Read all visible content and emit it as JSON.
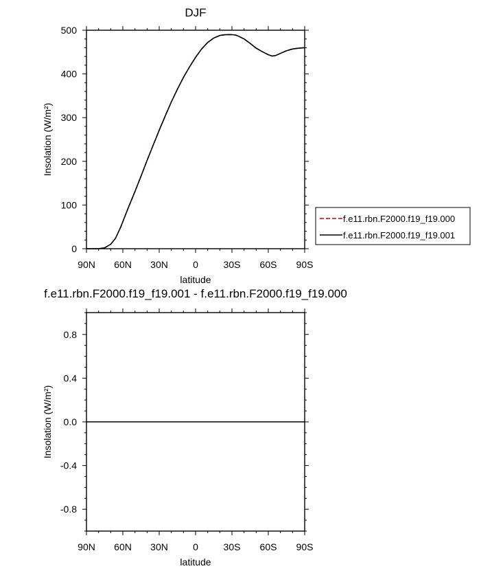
{
  "chart_data": [
    {
      "type": "line",
      "title": "DJF",
      "xlabel": "latitude",
      "ylabel": "Insolation (W/m²)",
      "ylim": [
        0,
        500
      ],
      "xlim": [
        90,
        -90
      ],
      "x_ticks": [
        90,
        60,
        30,
        0,
        -30,
        -60,
        -90
      ],
      "x_tick_labels": [
        "90N",
        "60N",
        "30N",
        "0",
        "30S",
        "60S",
        "90S"
      ],
      "y_ticks": [
        0,
        100,
        200,
        300,
        400,
        500
      ],
      "y_tick_labels": [
        "0",
        "100",
        "200",
        "300",
        "400",
        "500"
      ],
      "grid": false,
      "legend_position": "outside right",
      "x": [
        90,
        85,
        80,
        75,
        70,
        66,
        62,
        58,
        55,
        50,
        45,
        40,
        35,
        30,
        25,
        20,
        15,
        10,
        5,
        0,
        -5,
        -10,
        -15,
        -20,
        -25,
        -30,
        -33,
        -35,
        -40,
        -45,
        -50,
        -55,
        -60,
        -63,
        -66,
        -70,
        -75,
        -80,
        -85,
        -90
      ],
      "series": [
        {
          "name": "f.e11.rbn.F2000.f19_f19.000",
          "color": "#cc0000",
          "dash": "dashed",
          "values": [
            0,
            0,
            0,
            2,
            10,
            24,
            48,
            76,
            97,
            131,
            166,
            202,
            237,
            271,
            304,
            336,
            365,
            392,
            416,
            438,
            457,
            472,
            482,
            488,
            490,
            490,
            489,
            487,
            480,
            470,
            459,
            451,
            444,
            441,
            442,
            447,
            453,
            457,
            459,
            460
          ]
        },
        {
          "name": "f.e11.rbn.F2000.f19_f19.001",
          "color": "#000000",
          "dash": "solid",
          "values": [
            0,
            0,
            0,
            2,
            10,
            24,
            48,
            76,
            97,
            131,
            166,
            202,
            237,
            271,
            304,
            336,
            365,
            392,
            416,
            438,
            457,
            472,
            482,
            488,
            490,
            490,
            489,
            487,
            480,
            470,
            459,
            451,
            444,
            441,
            442,
            447,
            453,
            457,
            459,
            460
          ]
        }
      ]
    },
    {
      "type": "line",
      "title": "f.e11.rbn.F2000.f19_f19.001 - f.e11.rbn.F2000.f19_f19.000",
      "xlabel": "latitude",
      "ylabel": "Insolation (W/m²)",
      "ylim": [
        -1,
        1
      ],
      "xlim": [
        90,
        -90
      ],
      "x_ticks": [
        90,
        60,
        30,
        0,
        -30,
        -60,
        -90
      ],
      "x_tick_labels": [
        "90N",
        "60N",
        "30N",
        "0",
        "30S",
        "60S",
        "90S"
      ],
      "y_ticks": [
        -0.8,
        -0.4,
        0.0,
        0.4,
        0.8
      ],
      "y_tick_labels": [
        "-0.8",
        "-0.4",
        "0.0",
        "0.4",
        "0.8"
      ],
      "grid": false,
      "x": [
        90,
        -90
      ],
      "series": [
        {
          "color": "#000000",
          "dash": "solid",
          "values": [
            0,
            0
          ]
        }
      ]
    }
  ]
}
